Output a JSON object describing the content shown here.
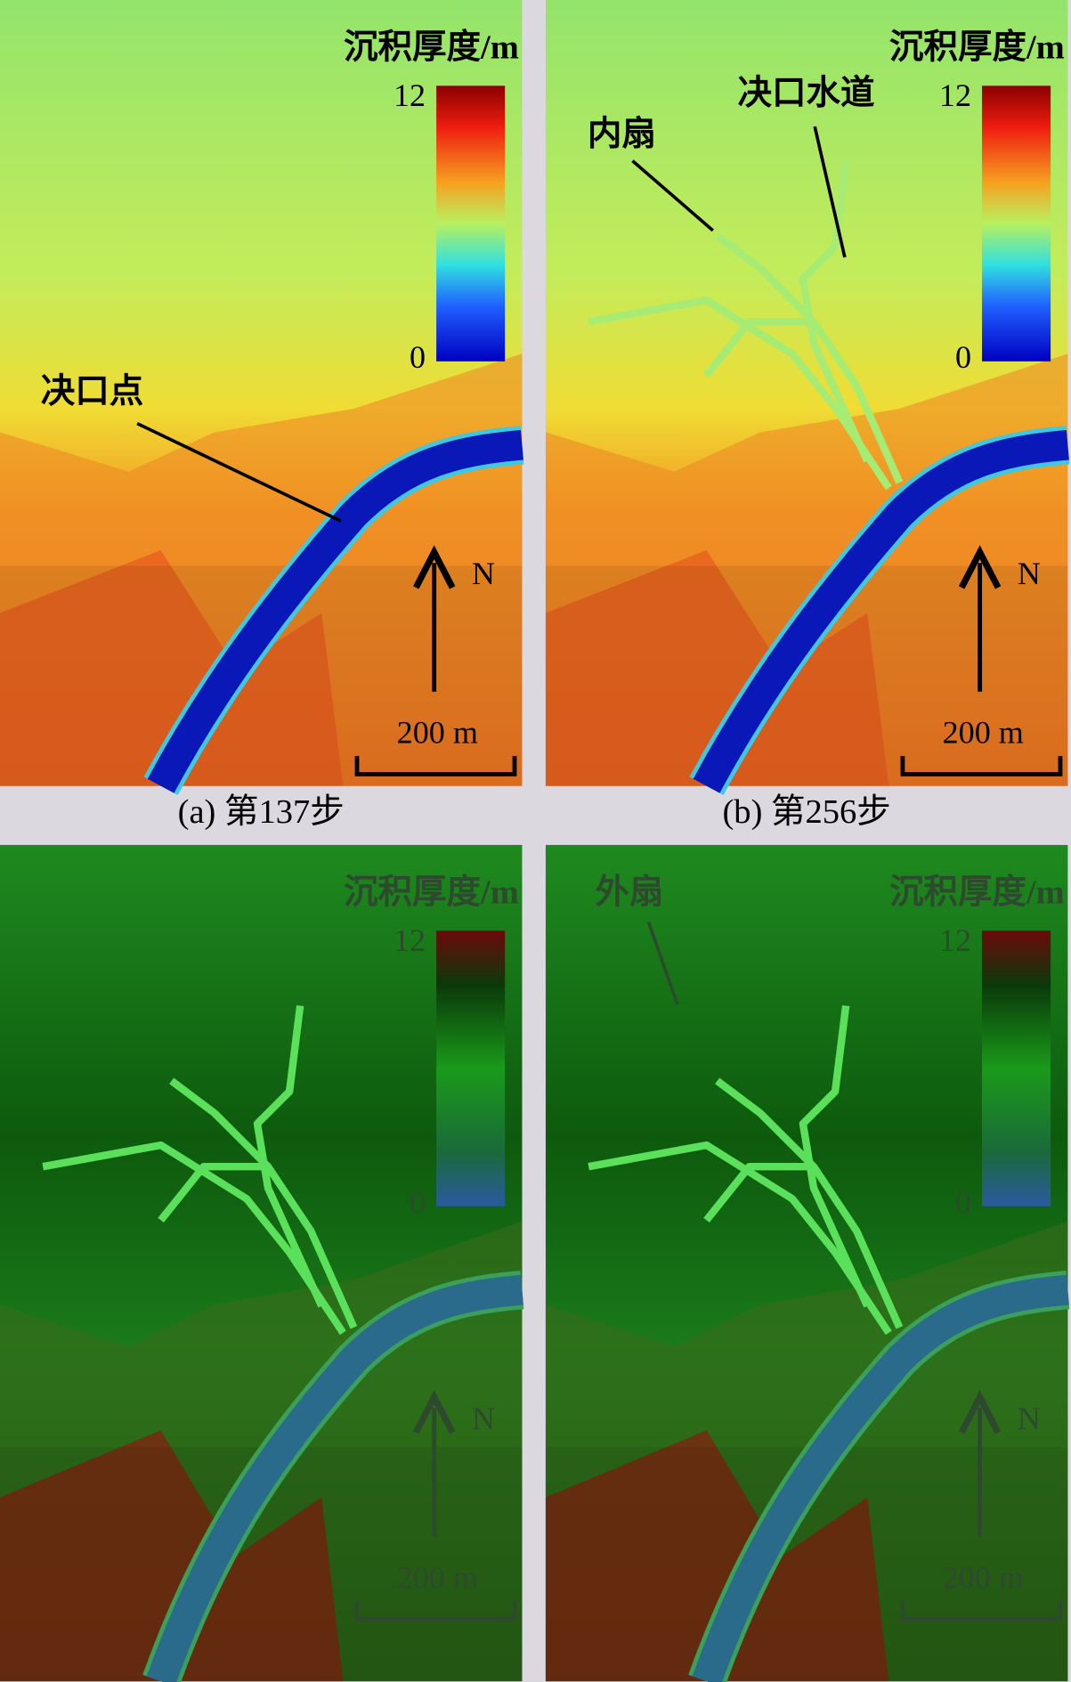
{
  "panels": [
    {
      "legend_title": "沉积厚度/m",
      "colorbar_max": "12",
      "colorbar_min": "0",
      "north": "N",
      "scale": "200 m",
      "caption": "(a) 第137步",
      "annotations": [
        "决口点"
      ]
    },
    {
      "legend_title": "沉积厚度/m",
      "colorbar_max": "12",
      "colorbar_min": "0",
      "north": "N",
      "scale": "200 m",
      "caption": "(b) 第256步",
      "annotations": [
        "内扇",
        "决口水道"
      ]
    },
    {
      "legend_title": "沉积厚度/m",
      "colorbar_max": "12",
      "colorbar_min": "0",
      "north": "N",
      "scale": "200 m"
    },
    {
      "legend_title": "沉积厚度/m",
      "colorbar_max": "12",
      "colorbar_min": "0",
      "north": "N",
      "scale": "200 m",
      "annotations": [
        "外扇"
      ]
    }
  ]
}
